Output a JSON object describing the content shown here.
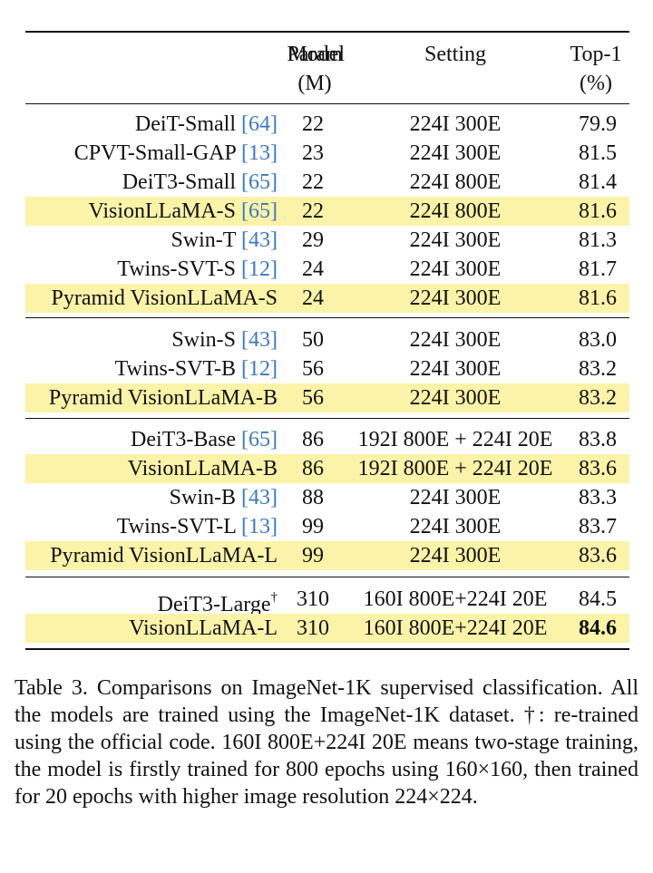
{
  "table": {
    "header": {
      "model": "Model",
      "param_line1": "Param",
      "param_line2": "(M)",
      "setting": "Setting",
      "top1_line1": "Top-1",
      "top1_line2": "(%)"
    },
    "rows": [
      {
        "model": "DeiT-Small ",
        "ref": "[64]",
        "param": "22",
        "setting": "224I 300E",
        "top1": "79.9",
        "highlight": false
      },
      {
        "model": "CPVT-Small-GAP ",
        "ref": "[13]",
        "param": "23",
        "setting": "224I 300E",
        "top1": "81.5",
        "highlight": false
      },
      {
        "model": "DeiT3-Small ",
        "ref": "[65]",
        "param": "22",
        "setting": "224I 800E",
        "top1": "81.4",
        "highlight": false
      },
      {
        "model": "VisionLLaMA-S ",
        "ref": "[65]",
        "param": "22",
        "setting": "224I 800E",
        "top1": "81.6",
        "highlight": true
      },
      {
        "model": "Swin-T ",
        "ref": "[43]",
        "param": "29",
        "setting": "224I 300E",
        "top1": "81.3",
        "highlight": false
      },
      {
        "model": "Twins-SVT-S ",
        "ref": "[12]",
        "param": "24",
        "setting": "224I 300E",
        "top1": "81.7",
        "highlight": false
      },
      {
        "model": "Pyramid VisionLLaMA-S",
        "ref": "",
        "param": "24",
        "setting": "224I 300E",
        "top1": "81.6",
        "highlight": true
      },
      {
        "model": "Swin-S ",
        "ref": "[43]",
        "param": "50",
        "setting": "224I 300E",
        "top1": "83.0",
        "highlight": false
      },
      {
        "model": "Twins-SVT-B ",
        "ref": "[12]",
        "param": "56",
        "setting": "224I 300E",
        "top1": "83.2",
        "highlight": false
      },
      {
        "model": "Pyramid VisionLLaMA-B",
        "ref": "",
        "param": "56",
        "setting": "224I 300E",
        "top1": "83.2",
        "highlight": true
      },
      {
        "model": "DeiT3-Base ",
        "ref": "[65]",
        "param": "86",
        "setting": "192I 800E + 224I 20E",
        "top1": "83.8",
        "highlight": false
      },
      {
        "model": "VisionLLaMA-B",
        "ref": "",
        "param": "86",
        "setting": "192I 800E + 224I 20E",
        "top1": "83.6",
        "highlight": true
      },
      {
        "model": "Swin-B ",
        "ref": "[43]",
        "param": "88",
        "setting": "224I 300E",
        "top1": "83.3",
        "highlight": false
      },
      {
        "model": "Twins-SVT-L ",
        "ref": "[13]",
        "param": "99",
        "setting": "224I 300E",
        "top1": "83.7",
        "highlight": false
      },
      {
        "model": "Pyramid VisionLLaMA-L",
        "ref": "",
        "param": "99",
        "setting": "224I 300E",
        "top1": "83.6",
        "highlight": true
      },
      {
        "model": "DeiT3-Large",
        "ref": "",
        "sup": "†",
        "param": "310",
        "setting": "160I 800E+224I 20E",
        "top1": "84.5",
        "highlight": false
      },
      {
        "model": "VisionLLaMA-L",
        "ref": "",
        "param": "310",
        "setting": "160I 800E+224I 20E",
        "top1": "84.6",
        "highlight": true,
        "bold_top1": true
      }
    ]
  },
  "caption": "Table 3. Comparisons on ImageNet-1K supervised classification. All the models are trained using the ImageNet-1K dataset. †: re-trained using the official code. 160I 800E+224I 20E means two-stage training, the model is firstly trained for 800 epochs using 160×160, then trained for 20 epochs with higher image resolution 224×224."
}
